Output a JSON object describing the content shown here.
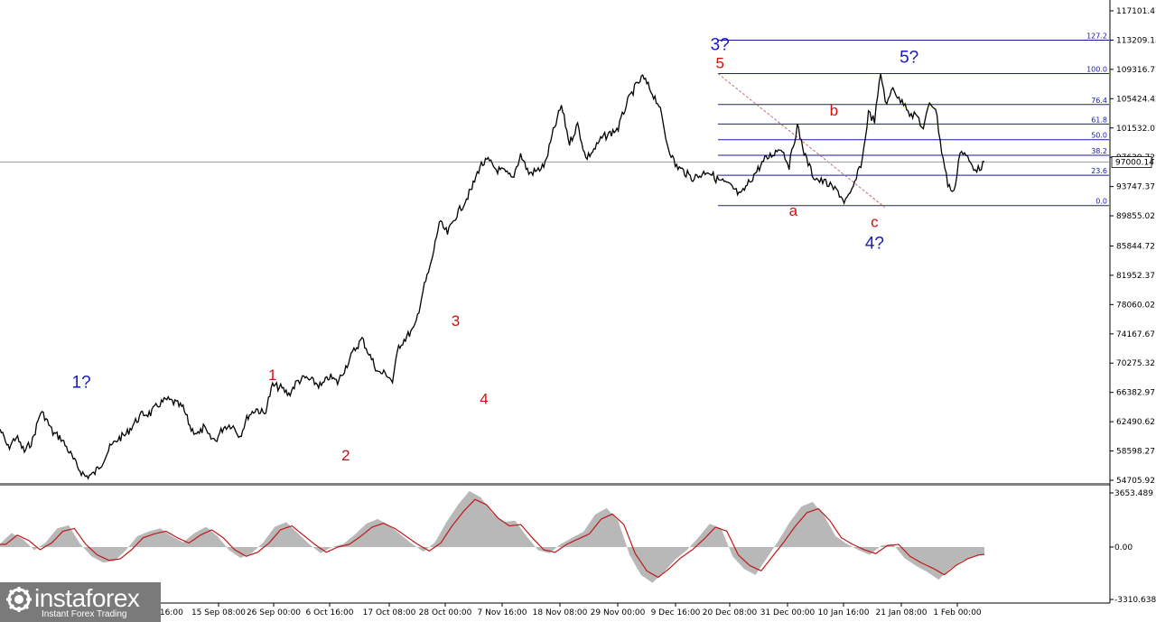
{
  "chart_data": {
    "type": "line",
    "instrument_note": "",
    "price_axis": {
      "ticks": [
        "117101.47",
        "113209.15",
        "109316.77",
        "105424.42",
        "101532.07",
        "97639.72",
        "93747.37",
        "89855.02",
        "85844.72",
        "81952.37",
        "78060.02",
        "74167.67",
        "70275.32",
        "66382.97",
        "62490.62",
        "58598.27",
        "54705.92"
      ],
      "ylim": [
        54705.92,
        117101.47
      ],
      "current_price": "97000.14"
    },
    "time_axis": {
      "ticks": [
        "15 Sep 08:00",
        "26 Sep 00:00",
        "6 Oct 16:00",
        "17 Oct 08:00",
        "28 Oct 00:00",
        "7 Nov 16:00",
        "18 Nov 08:00",
        "29 Nov 00:00",
        "9 Dec 16:00",
        "20 Dec 08:00",
        "31 Dec 00:00",
        "10 Jan 16:00",
        "21 Jan 08:00",
        "1 Feb 00:00"
      ],
      "partial_left": "Sep 16:00"
    },
    "price_series": {
      "name": "",
      "x_index": [
        0,
        4,
        8,
        12,
        16,
        20,
        22,
        26,
        30,
        34,
        38,
        42,
        46,
        50,
        54,
        58,
        62,
        66,
        70,
        74,
        78,
        82,
        86,
        90,
        94,
        98,
        100,
        103,
        106,
        110,
        114,
        118,
        122,
        126,
        130,
        134,
        138,
        142,
        146,
        150,
        154,
        158,
        162,
        166,
        170,
        174,
        178,
        182,
        186,
        190,
        193,
        196,
        200,
        204,
        208,
        212,
        216,
        220,
        224,
        228,
        232,
        236,
        240,
        244,
        248,
        252,
        256,
        260,
        264,
        268,
        272,
        276,
        280,
        284,
        288,
        292,
        296,
        300,
        304,
        308,
        312,
        316,
        320,
        324,
        328,
        332,
        336,
        340,
        344,
        348,
        352,
        356,
        360,
        364,
        368,
        372,
        376,
        380,
        384,
        388,
        392,
        396,
        400,
        403,
        406,
        409,
        412,
        415,
        418,
        421,
        424,
        427,
        430,
        433,
        436,
        439,
        442,
        445,
        448,
        451,
        454,
        457,
        460,
        463,
        466,
        469,
        472,
        475,
        478,
        481,
        484
      ],
      "values": [
        61500,
        59000,
        60500,
        58500,
        60000,
        63800,
        63200,
        61000,
        60300,
        58500,
        56500,
        55200,
        55500,
        57000,
        59000,
        60200,
        60800,
        62300,
        63500,
        63600,
        64800,
        65400,
        65000,
        64300,
        61500,
        60800,
        61700,
        60400,
        60000,
        61800,
        62100,
        60600,
        63300,
        64200,
        63500,
        67300,
        67000,
        66100,
        67800,
        68300,
        67800,
        67200,
        68500,
        67700,
        69800,
        71900,
        73500,
        71200,
        69000,
        68900,
        67800,
        72500,
        73800,
        75000,
        79900,
        83500,
        89000,
        87500,
        89800,
        91500,
        93500,
        96500,
        97200,
        96000,
        95700,
        94800,
        98000,
        95500,
        95800,
        96700,
        101000,
        104500,
        99500,
        102000,
        97500,
        98600,
        100200,
        100800,
        101500,
        104700,
        106800,
        108300,
        106500,
        104600,
        99500,
        96600,
        95800,
        94900,
        95200,
        95900,
        94800,
        94300,
        93600,
        92500,
        94200,
        95800,
        97300,
        98100,
        99000,
        96500,
        101800,
        97700,
        95100,
        94500,
        94300,
        93600,
        93100,
        91800,
        92500,
        94800,
        97400,
        103500,
        102500,
        108800,
        104400,
        107200,
        105200,
        104900,
        103100,
        103200,
        101200,
        105000,
        104200,
        98500,
        94100,
        92800,
        98500,
        97800,
        96500,
        96000,
        97000
      ],
      "xmax": 484
    },
    "fib_levels": [
      {
        "label": "127.2",
        "price": 113209
      },
      {
        "label": "100.0",
        "price": 108766
      },
      {
        "label": "76.4",
        "price": 104650
      },
      {
        "label": "61.8",
        "price": 102060
      },
      {
        "label": "50.0",
        "price": 99980
      },
      {
        "label": "38.2",
        "price": 97900
      },
      {
        "label": "23.6",
        "price": 95250
      },
      {
        "label": "0.0",
        "price": 91220
      }
    ],
    "wave_labels": [
      {
        "text": "1?",
        "color": "blue",
        "anchor_price": 65800,
        "anchor_index": 40,
        "offset": "above"
      },
      {
        "text": "1",
        "color": "red",
        "anchor_price": 66800,
        "anchor_index": 134,
        "offset": "above"
      },
      {
        "text": "2",
        "color": "red",
        "anchor_price": 60000,
        "anchor_index": 170,
        "offset": "below"
      },
      {
        "text": "3",
        "color": "red",
        "anchor_price": 74000,
        "anchor_index": 224,
        "offset": "above"
      },
      {
        "text": "4",
        "color": "red",
        "anchor_price": 67500,
        "anchor_index": 238,
        "offset": "below"
      },
      {
        "text": "5",
        "color": "red",
        "anchor_price": 108300,
        "anchor_index": 354,
        "offset": "above"
      },
      {
        "text": "3?",
        "color": "blue",
        "anchor_price": 108300,
        "anchor_index": 354,
        "offset": "above2"
      },
      {
        "text": "a",
        "color": "red",
        "anchor_price": 92500,
        "anchor_index": 390,
        "offset": "below"
      },
      {
        "text": "b",
        "color": "red",
        "anchor_price": 102000,
        "anchor_index": 410,
        "offset": "above"
      },
      {
        "text": "5?",
        "color": "blue",
        "anchor_price": 109000,
        "anchor_index": 447,
        "offset": "above"
      },
      {
        "text": "c",
        "color": "red",
        "anchor_price": 91000,
        "anchor_index": 430,
        "offset": "below"
      },
      {
        "text": "4?",
        "color": "blue",
        "anchor_price": 91000,
        "anchor_index": 430,
        "offset": "below2"
      }
    ],
    "oscillator": {
      "type": "area",
      "ticks": [
        "3653.489",
        "0.00",
        "-3310.638"
      ],
      "ylim": [
        -3310.638,
        3653.489
      ],
      "values": [
        200,
        900,
        500,
        -200,
        300,
        1200,
        1400,
        200,
        -600,
        -1000,
        -900,
        -200,
        700,
        1000,
        1200,
        700,
        300,
        900,
        1300,
        700,
        -200,
        -700,
        -400,
        300,
        1300,
        1600,
        900,
        200,
        -400,
        0,
        200,
        800,
        1500,
        1800,
        1400,
        800,
        200,
        -300,
        300,
        1600,
        2700,
        3600,
        3200,
        2200,
        1600,
        1700,
        700,
        -200,
        -400,
        200,
        600,
        1000,
        2100,
        2500,
        1700,
        -500,
        -1800,
        -2300,
        -1600,
        -800,
        -200,
        600,
        1500,
        1200,
        -600,
        -1400,
        -1800,
        -700,
        400,
        1600,
        2600,
        2900,
        2000,
        700,
        200,
        -200,
        -500,
        100,
        200,
        -700,
        -1200,
        -1600,
        -2100,
        -1400,
        -900,
        -600,
        -500
      ]
    }
  }
}
